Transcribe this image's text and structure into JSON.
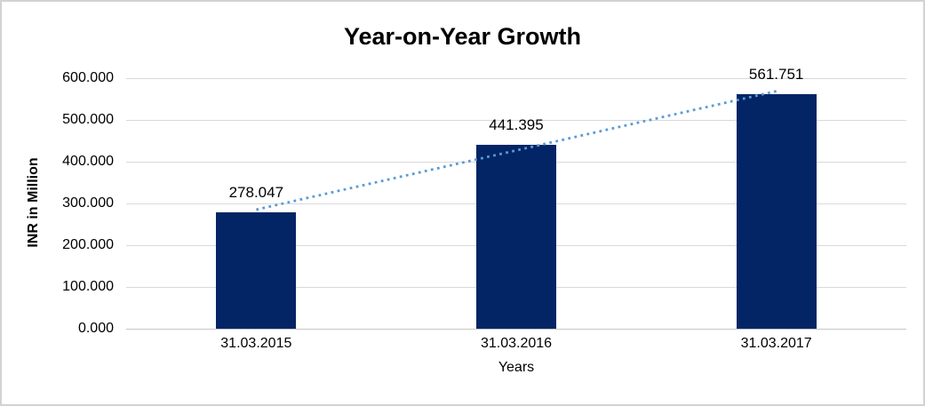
{
  "chart_data": {
    "type": "bar",
    "title": "Year-on-Year Growth",
    "xlabel": "Years",
    "ylabel": "INR in Million",
    "categories": [
      "31.03.2015",
      "31.03.2016",
      "31.03.2017"
    ],
    "values": [
      278.047,
      441.395,
      561.751
    ],
    "data_labels": [
      "278.047",
      "441.395",
      "561.751"
    ],
    "ylim": [
      0,
      600
    ],
    "ytick_labels": [
      "0.000",
      "100.000",
      "200.000",
      "300.000",
      "400.000",
      "500.000",
      "600.000"
    ],
    "grid": "horizontal",
    "legend": "none",
    "trendline": {
      "type": "linear",
      "style": "dotted"
    },
    "colors": {
      "bar": "#032565",
      "trendline": "#5b9bd5",
      "gridline": "#d9d9d9",
      "axis_line": "#c6c6c6",
      "text": "#000000",
      "background": "#ffffff",
      "frame_border": "#d2d2d2"
    }
  }
}
